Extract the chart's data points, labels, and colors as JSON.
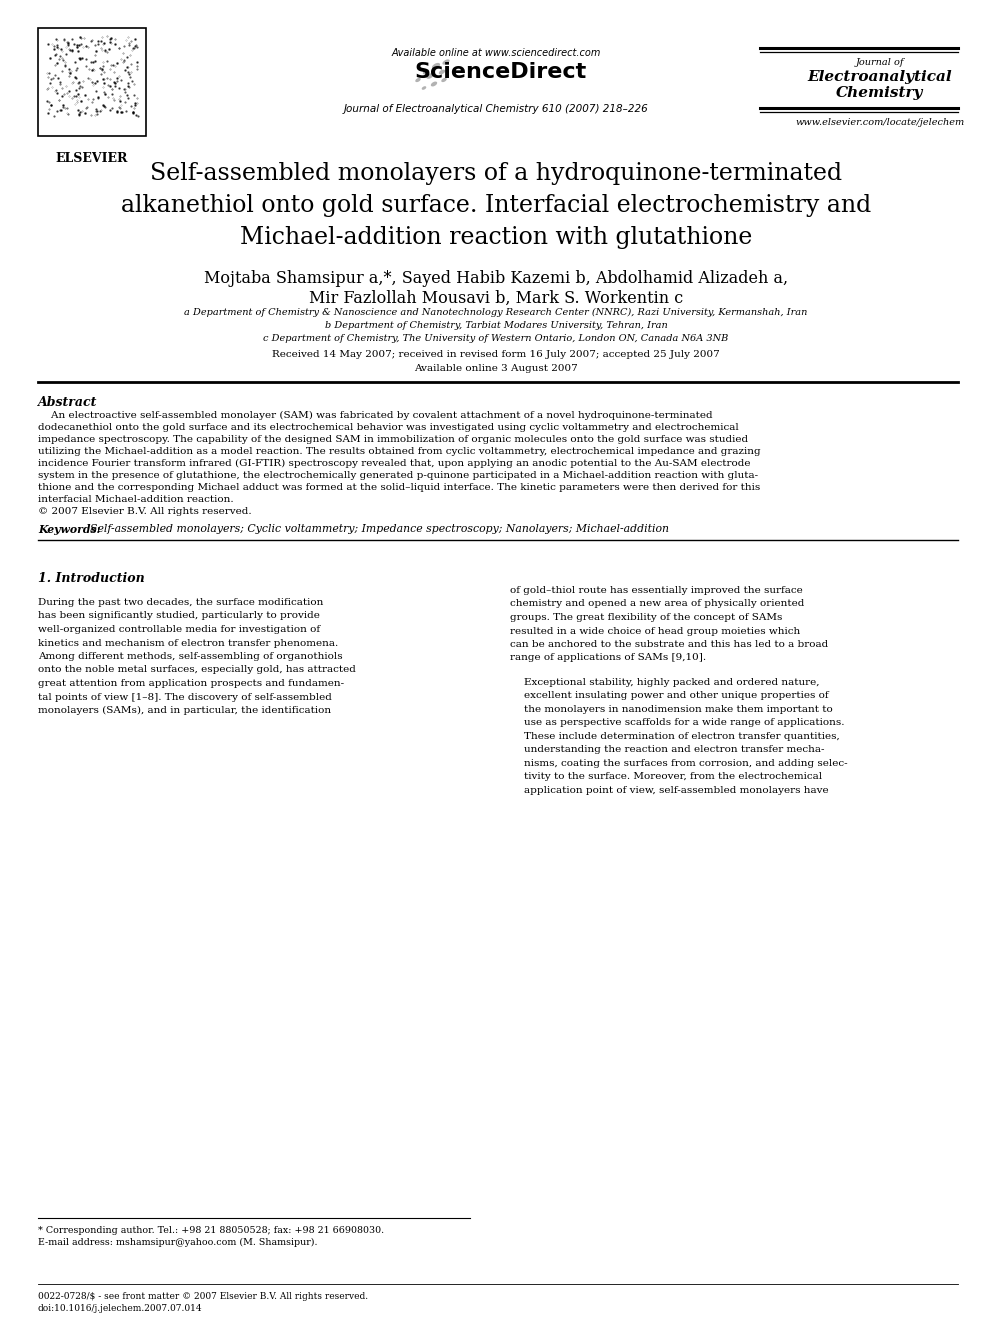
{
  "bg_color": "#ffffff",
  "available_online": "Available online at www.sciencedirect.com",
  "sciencedirect": "ScienceDirect",
  "journal_center": "Journal of Electroanalytical Chemistry 610 (2007) 218–226",
  "jrnl_right_1": "Journal of",
  "jrnl_right_2": "Electroanalytical",
  "jrnl_right_3": "Chemistry",
  "website": "www.elsevier.com/locate/jelechem",
  "title_line1": "Self-assembled monolayers of a hydroquinone-terminated",
  "title_line2": "alkanethiol onto gold surface. Interfacial electrochemistry and",
  "title_line3": "Michael-addition reaction with glutathione",
  "author_line1": "Mojtaba Shamsipur a,*, Sayed Habib Kazemi b, Abdolhamid Alizadeh a,",
  "author_line2": "Mir Fazlollah Mousavi b, Mark S. Workentin c",
  "affil1": "a Department of Chemistry & Nanoscience and Nanotechnology Research Center (NNRC), Razi University, Kermanshah, Iran",
  "affil2": "b Department of Chemistry, Tarbiat Modares University, Tehran, Iran",
  "affil3": "c Department of Chemistry, The University of Western Ontario, London ON, Canada N6A 3NB",
  "received": "Received 14 May 2007; received in revised form 16 July 2007; accepted 25 July 2007",
  "avail_date": "Available online 3 August 2007",
  "abstract_label": "Abstract",
  "abstract_p1": "An electroactive self-assembled monolayer (SAM) was fabricated by covalent attachment of a novel hydroquinone-terminated dodecanethiol onto the gold surface and its electrochemical behavior was investigated using cyclic voltammetry and electrochemical impedance spectroscopy. The capability of the designed SAM in immobilization of organic molecules onto the gold surface was studied utilizing the Michael-addition as a model reaction. The results obtained from cyclic voltammetry, electrochemical impedance and grazing incidence Fourier transform infrared (GI-FTIR) spectroscopy revealed that, upon applying an anodic potential to the Au-SAM electrode system in the presence of glutathione, the electrochemically generated p-quinone participated in a Michael-addition reaction with glutathione and the corresponding Michael adduct was formed at the solid–liquid interface. The kinetic parameters were then derived for this interfacial Michael-addition reaction.",
  "copyright": "© 2007 Elsevier B.V. All rights reserved.",
  "kw_label": "Keywords:",
  "kw_text": "Self-assembled monolayers; Cyclic voltammetry; Impedance spectroscopy; Nanolayers; Michael-addition",
  "sec1_title": "1. Introduction",
  "col1_para": [
    "During the past two decades, the surface modification",
    "has been significantly studied, particularly to provide",
    "well-organized controllable media for investigation of",
    "kinetics and mechanism of electron transfer phenomena.",
    "Among different methods, self-assembling of organothiols",
    "onto the noble metal surfaces, especially gold, has attracted",
    "great attention from application prospects and fundamen-",
    "tal points of view [1–8]. The discovery of self-assembled",
    "monolayers (SAMs), and in particular, the identification"
  ],
  "col2_para1": [
    "of gold–thiol route has essentially improved the surface",
    "chemistry and opened a new area of physically oriented",
    "groups. The great flexibility of the concept of SAMs",
    "resulted in a wide choice of head group moieties which",
    "can be anchored to the substrate and this has led to a broad",
    "range of applications of SAMs [9,10]."
  ],
  "col2_para2": [
    "Exceptional stability, highly packed and ordered nature,",
    "excellent insulating power and other unique properties of",
    "the monolayers in nanodimension make them important to",
    "use as perspective scaffolds for a wide range of applications.",
    "These include determination of electron transfer quantities,",
    "understanding the reaction and electron transfer mecha-",
    "nisms, coating the surfaces from corrosion, and adding selec-",
    "tivity to the surface. Moreover, from the electrochemical",
    "application point of view, self-assembled monolayers have"
  ],
  "footnote1": "* Corresponding author. Tel.: +98 21 88050528; fax: +98 21 66908030.",
  "footnote2": "E-mail address: mshamsipur@yahoo.com (M. Shamsipur).",
  "footer1": "0022-0728/$ - see front matter © 2007 Elsevier B.V. All rights reserved.",
  "footer2": "doi:10.1016/j.jelechem.2007.07.014",
  "fig_w": 9.92,
  "fig_h": 13.23,
  "dpi": 100
}
